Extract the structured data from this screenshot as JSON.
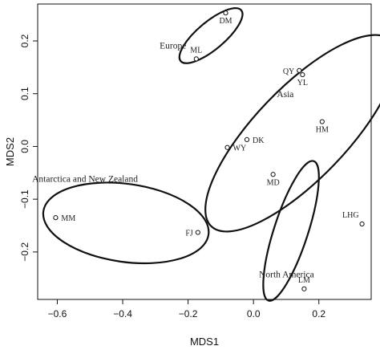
{
  "chart_data": {
    "type": "scatter",
    "xlabel": "MDS1",
    "ylabel": "MDS2",
    "xlim": [
      -0.66,
      0.36
    ],
    "ylim": [
      -0.29,
      0.27
    ],
    "xticks": [
      -0.6,
      -0.4,
      -0.2,
      0.0,
      0.2
    ],
    "yticks": [
      -0.2,
      -0.1,
      0.0,
      0.1,
      0.2
    ],
    "xtick_labels": [
      "−0.6",
      "−0.4",
      "−0.2",
      "0.0",
      "0.2"
    ],
    "ytick_labels": [
      "−0.2",
      "−0.1",
      "0.0",
      "0.1",
      "0.2"
    ],
    "grid": false,
    "points": [
      {
        "label": "DM",
        "x": -0.085,
        "y": 0.253,
        "label_pos": "below"
      },
      {
        "label": "ML",
        "x": -0.175,
        "y": 0.166,
        "label_pos": "above"
      },
      {
        "label": "QY",
        "x": 0.14,
        "y": 0.144,
        "label_pos": "left"
      },
      {
        "label": "YL",
        "x": 0.15,
        "y": 0.136,
        "label_pos": "below"
      },
      {
        "label": "HM",
        "x": 0.21,
        "y": 0.047,
        "label_pos": "below"
      },
      {
        "label": "DK",
        "x": -0.02,
        "y": 0.013,
        "label_pos": "right"
      },
      {
        "label": "WY",
        "x": -0.08,
        "y": -0.002,
        "label_pos": "right"
      },
      {
        "label": "MD",
        "x": 0.06,
        "y": -0.053,
        "label_pos": "below"
      },
      {
        "label": "LHG",
        "x": 0.332,
        "y": -0.147,
        "label_pos": "above-left"
      },
      {
        "label": "MM",
        "x": -0.605,
        "y": -0.135,
        "label_pos": "right"
      },
      {
        "label": "FJ",
        "x": -0.17,
        "y": -0.163,
        "label_pos": "left"
      },
      {
        "label": "LM",
        "x": 0.155,
        "y": -0.27,
        "label_pos": "above"
      }
    ],
    "groups": [
      {
        "name": "Europe",
        "cx": -0.13,
        "cy": 0.21,
        "rx": 0.042,
        "ry": 0.075,
        "angle": 50
      },
      {
        "name": "Asia",
        "cx": 0.145,
        "cy": 0.025,
        "rx": 0.14,
        "ry": 0.245,
        "angle": 44
      },
      {
        "name": "Antarctica and New Zealand",
        "cx": -0.39,
        "cy": -0.145,
        "rx": 0.255,
        "ry": 0.074,
        "angle": 8
      },
      {
        "name": "North America",
        "cx": 0.115,
        "cy": -0.16,
        "rx": 0.052,
        "ry": 0.139,
        "angle": 18
      }
    ]
  }
}
